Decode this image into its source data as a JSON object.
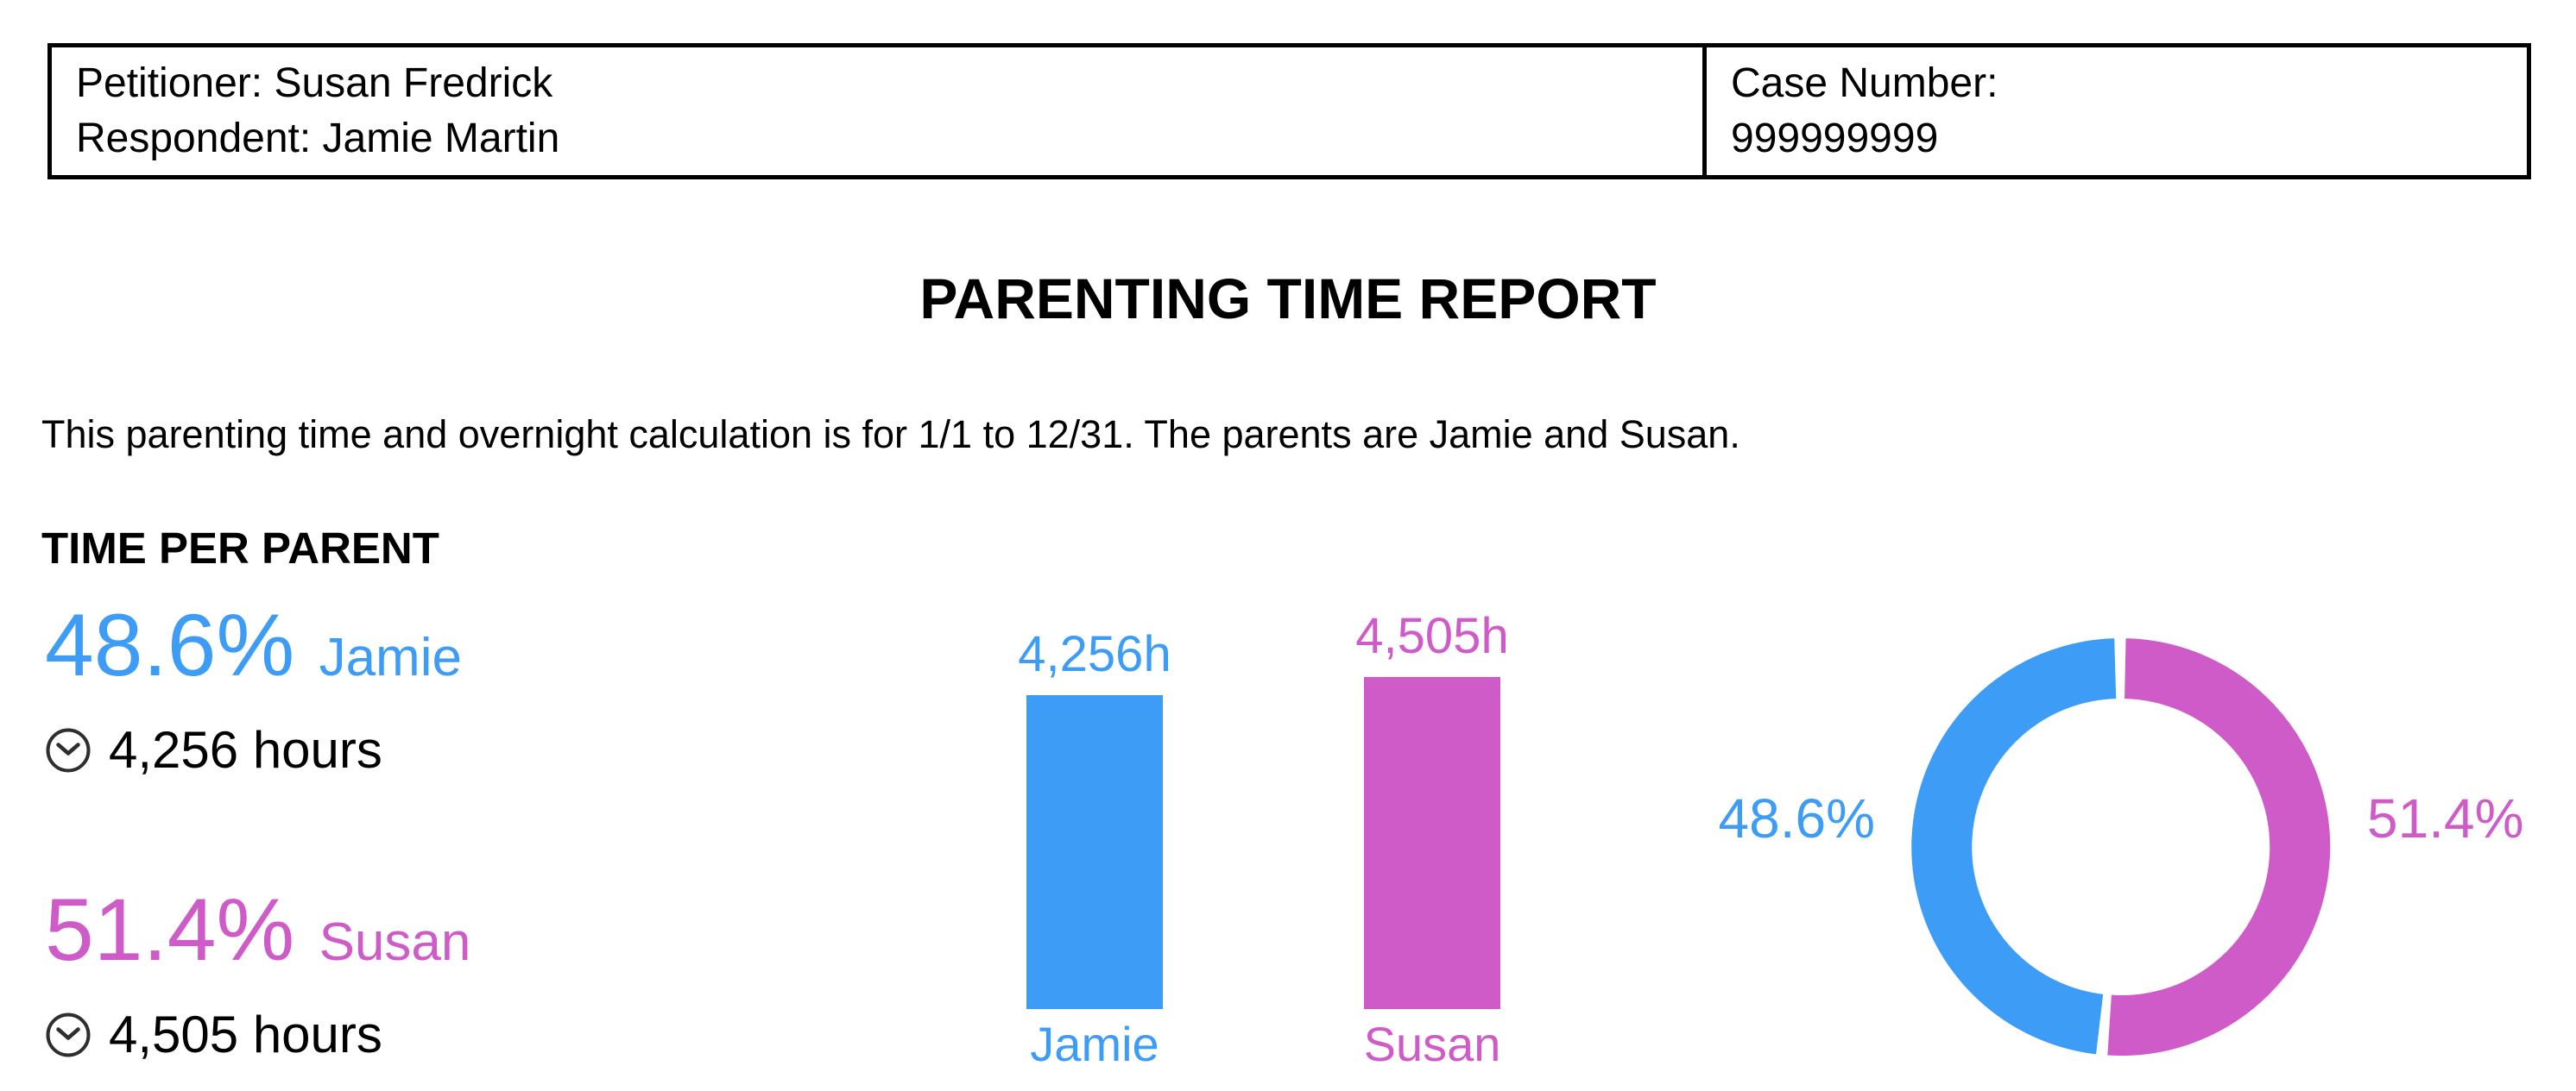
{
  "header_table": {
    "petitioner": "Petitioner: Susan Fredrick",
    "respondent": "Respondent: Jamie Martin",
    "case_number_label": "Case Number:",
    "case_number_value": "999999999"
  },
  "report": {
    "title": "PARENTING TIME REPORT",
    "intro": "This parenting time and overnight calculation is for 1/1 to 12/31. The parents are Jamie and Susan.",
    "section_heading": "TIME PER PARENT"
  },
  "parents": [
    {
      "name": "Jamie",
      "percent_label": "48.6%",
      "hours_label": "4,256 hours",
      "color": "#3D9CF6"
    },
    {
      "name": "Susan",
      "percent_label": "51.4%",
      "hours_label": "4,505 hours",
      "color": "#CE5BC8"
    }
  ],
  "icons": {
    "hours_icon": "clock-icon"
  },
  "colors": {
    "jamie_blue": "#3D9CF6",
    "susan_magenta": "#CE5BC8",
    "text_black": "#000000",
    "clock_icon": "#2E2E2E",
    "table_border": "#000000"
  },
  "chart_data": [
    {
      "type": "bar",
      "title": "",
      "categories": [
        "Jamie",
        "Susan"
      ],
      "values": [
        4256,
        4505
      ],
      "value_labels": [
        "4,256h",
        "4,505h"
      ],
      "colors": [
        "#3D9CF6",
        "#CE5BC8"
      ],
      "unit": "hours",
      "ylim": [
        0,
        4505
      ],
      "grid": false,
      "axes_hidden": true
    },
    {
      "type": "pie",
      "donut": true,
      "slices": [
        {
          "label": "Jamie",
          "percent": 48.6,
          "color": "#3D9CF6",
          "label_position": "left"
        },
        {
          "label": "Susan",
          "percent": 51.4,
          "color": "#CE5BC8",
          "label_position": "right"
        }
      ],
      "percent_labels": [
        "48.6%",
        "51.4%"
      ],
      "start_angle_deg": 0,
      "clockwise": true,
      "first_slice_from_top": "Susan"
    }
  ]
}
